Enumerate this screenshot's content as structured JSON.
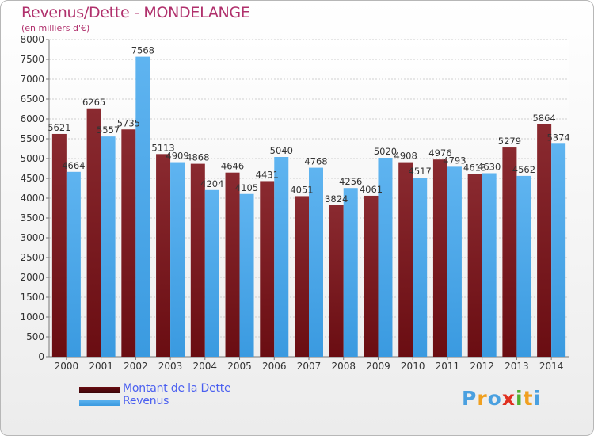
{
  "title": "Revenus/Dette - MONDELANGE",
  "subtitle": "(en milliers d'€)",
  "colors": {
    "dette": "#6a0d12",
    "revenus": "#3a9ae0",
    "title": "#b0306c",
    "legend_text": "#4a5ff0"
  },
  "legend": {
    "dette_label": "Montant de la Dette",
    "revenus_label": "Revenus"
  },
  "logo": {
    "text": "Proxiti",
    "letter_colors": [
      "#4aa0e0",
      "#f0a020",
      "#4aa0e0",
      "#e03020",
      "#50b030",
      "#f0a020",
      "#4aa0e0"
    ]
  },
  "chart_data": {
    "type": "bar",
    "categories": [
      "2000",
      "2001",
      "2002",
      "2003",
      "2004",
      "2005",
      "2006",
      "2007",
      "2008",
      "2009",
      "2010",
      "2011",
      "2012",
      "2013",
      "2014"
    ],
    "series": [
      {
        "name": "Montant de la Dette",
        "values": [
          5621,
          6265,
          5735,
          5113,
          4868,
          4646,
          4431,
          4051,
          3824,
          4061,
          4908,
          4976,
          4613,
          5279,
          5864
        ]
      },
      {
        "name": "Revenus",
        "values": [
          4664,
          5557,
          7568,
          4909,
          4204,
          4105,
          5040,
          4768,
          4256,
          5020,
          4517,
          4793,
          4630,
          4562,
          5374
        ]
      }
    ],
    "data_labels": {
      "dette": [
        "5621",
        "6265",
        "5735",
        "5113",
        "4868",
        "4646",
        "4431",
        "4051",
        "3824",
        "4061",
        "4908",
        "4976",
        "4613",
        "5279",
        "5864"
      ],
      "revenus": [
        "4664",
        "5557",
        "7568",
        "4909",
        "4204",
        "4105",
        "5040",
        "4768",
        "4256",
        "5020",
        "4517",
        "4793",
        "4630",
        "4562",
        "5374"
      ]
    },
    "ylim": [
      0,
      8000
    ],
    "yticks": [
      0,
      500,
      1000,
      1500,
      2000,
      2500,
      3000,
      3500,
      4000,
      4500,
      5000,
      5500,
      6000,
      6500,
      7000,
      7500,
      8000
    ],
    "grid": true,
    "legend_position": "bottom-left"
  }
}
